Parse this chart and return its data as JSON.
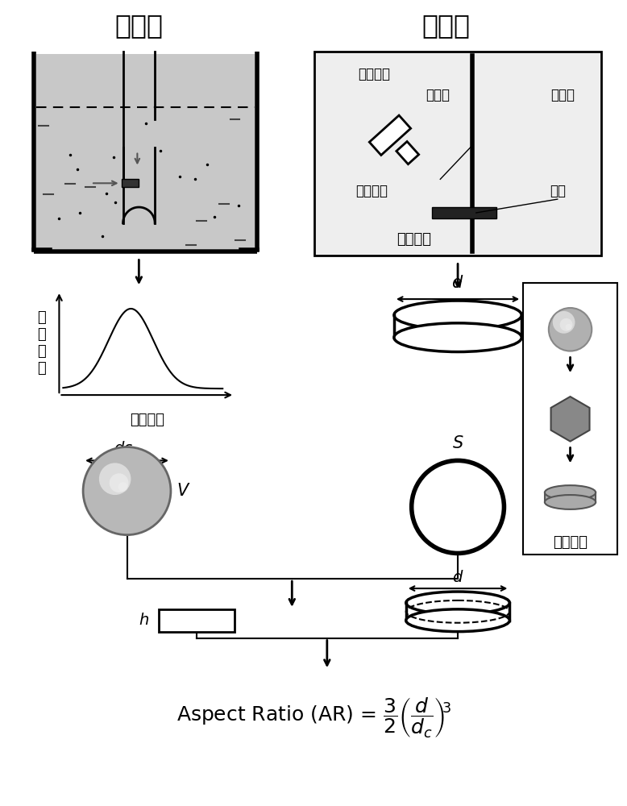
{
  "title_left": "电阻法",
  "title_right": "图像法",
  "label_pulse_height": "脉\n冲\n高\n度",
  "label_particle_seq": "颗粒顺序",
  "label_signal_out": "信号输出",
  "label_light_guide": "光导管",
  "label_e_beam": "电子束",
  "label_collector": "接收栅极",
  "label_sample": "样品",
  "label_scan_mirror": "扫描电镜",
  "label_equiv": "等效示意",
  "bg_color": "#ffffff"
}
